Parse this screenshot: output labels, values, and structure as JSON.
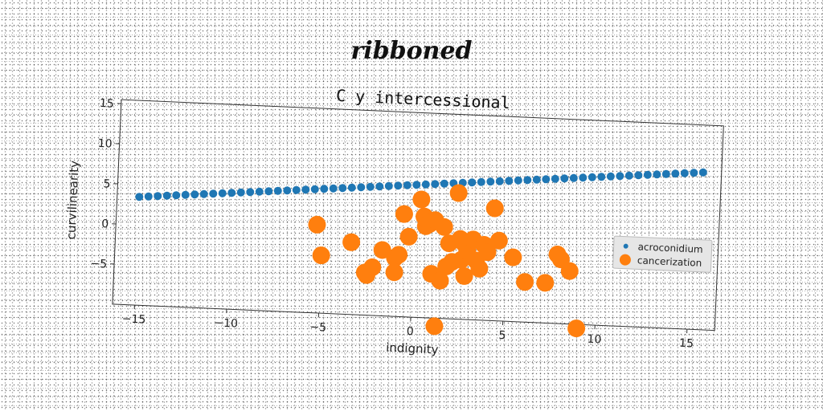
{
  "figure": {
    "supertitle": "ribboned"
  },
  "chart_data": {
    "type": "scatter",
    "title": "C y intercessional",
    "xlabel": "indignity",
    "ylabel": "curvilinearity",
    "xlim": [
      -16.2,
      16.5
    ],
    "ylim": [
      -10,
      15.5
    ],
    "xticks": [
      -15,
      -10,
      -5,
      0,
      5,
      10,
      15
    ],
    "xtick_labels": [
      "−15",
      "−10",
      "−5",
      "0",
      "5",
      "10",
      "15"
    ],
    "yticks": [
      -5,
      0,
      5,
      10,
      15
    ],
    "ytick_labels": [
      "−5",
      "0",
      "5",
      "10",
      "15"
    ],
    "grid": false,
    "legend_position": "right",
    "series": [
      {
        "name": "acroconidium",
        "color": "#1f77b4",
        "marker_size": "small",
        "x": [
          -15.0,
          -14.5,
          -14.0,
          -13.5,
          -13.0,
          -12.5,
          -12.0,
          -11.5,
          -11.0,
          -10.5,
          -10.0,
          -9.5,
          -9.0,
          -8.5,
          -8.0,
          -7.5,
          -7.0,
          -6.5,
          -6.0,
          -5.5,
          -5.0,
          -4.5,
          -4.0,
          -3.5,
          -3.0,
          -2.5,
          -2.0,
          -1.5,
          -1.0,
          -0.5,
          0.0,
          0.5,
          1.0,
          1.5,
          2.0,
          2.5,
          3.0,
          3.5,
          4.0,
          4.5,
          5.0,
          5.5,
          6.0,
          6.5,
          7.0,
          7.5,
          8.0,
          8.5,
          9.0,
          9.5,
          10.0,
          10.5,
          11.0,
          11.5,
          12.0,
          12.5,
          13.0,
          13.5,
          14.0,
          14.5,
          15.0,
          15.5
        ],
        "y": [
          3.5,
          3.6,
          3.7,
          3.8,
          3.9,
          4.0,
          4.1,
          4.2,
          4.3,
          4.4,
          4.5,
          4.6,
          4.7,
          4.8,
          4.9,
          5.0,
          5.1,
          5.2,
          5.3,
          5.4,
          5.5,
          5.6,
          5.7,
          5.8,
          5.9,
          6.0,
          6.1,
          6.2,
          6.3,
          6.4,
          6.5,
          6.6,
          6.7,
          6.8,
          6.9,
          7.0,
          7.1,
          7.2,
          7.3,
          7.4,
          7.5,
          7.6,
          7.7,
          7.8,
          7.9,
          8.0,
          8.1,
          8.2,
          8.3,
          8.4,
          8.5,
          8.6,
          8.7,
          8.8,
          8.9,
          9.0,
          9.1,
          9.2,
          9.3,
          9.4,
          9.5,
          9.6
        ]
      },
      {
        "name": "cancerization",
        "color": "#ff7f0e",
        "marker_size": "large",
        "x": [
          -5.3,
          -5.0,
          -3.4,
          -2.6,
          -2.5,
          -2.2,
          -1.7,
          -1.0,
          -1.0,
          -0.8,
          -0.6,
          -0.3,
          0.3,
          0.5,
          0.6,
          0.8,
          1.0,
          1.1,
          1.3,
          1.5,
          1.6,
          1.8,
          1.9,
          2.1,
          2.3,
          2.5,
          2.6,
          2.7,
          2.8,
          2.9,
          3.1,
          3.2,
          3.4,
          3.6,
          3.8,
          4.0,
          4.3,
          4.6,
          5.4,
          6.1,
          7.2,
          7.8,
          8.0,
          8.5,
          9.0
        ],
        "y": [
          1.0,
          -2.8,
          -1.0,
          -4.7,
          -5.0,
          -4.0,
          -1.8,
          -4.5,
          -2.7,
          -2.3,
          2.8,
          0.0,
          4.7,
          2.6,
          1.4,
          1.7,
          -4.5,
          2.2,
          -11.0,
          -5.3,
          1.4,
          -3.5,
          -0.6,
          -2.9,
          5.7,
          0.0,
          -2.6,
          -0.5,
          -4.6,
          -1.5,
          -0.3,
          0.0,
          -2.6,
          -3.6,
          -0.6,
          -1.5,
          4.0,
          0.0,
          -2.0,
          -5.0,
          -5.0,
          -1.4,
          -2.0,
          -3.4,
          -10.5
        ]
      }
    ]
  }
}
